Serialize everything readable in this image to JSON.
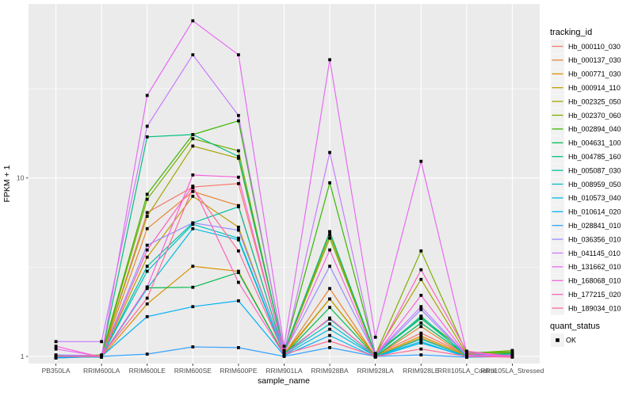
{
  "chart_data": {
    "type": "line",
    "xlabel": "sample_name",
    "ylabel": "FPKM + 1",
    "y_scale": "log10",
    "y_ticks": [
      "1",
      "10"
    ],
    "ylim": [
      0.9,
      92
    ],
    "grid": true,
    "legend_position": "right",
    "legend_series_title": "tracking_id",
    "legend_shape_title": "quant_status",
    "legend_shape_label": "OK",
    "marker": "black-square",
    "theme": {
      "panel_bg": "#EBEBEB",
      "grid": "#FFFFFF",
      "key_bg": "#F2F2F2",
      "marker": "#000000",
      "tick_text": "#4D4D4D",
      "axis_tick": "#333333"
    },
    "categories": [
      "PB350LA",
      "RRIM600LA",
      "RRIM600LE",
      "RRIM600SE",
      "RRIM600PE",
      "RRIM901LA",
      "RRIM928BA",
      "RRIM928LA",
      "RRIM928LE",
      "RRII105LA_Control",
      "RRII105LA_Stressed"
    ],
    "series": [
      {
        "name": "Hb_000110_030",
        "color": "#F8766D",
        "values": [
          1.0,
          1.0,
          6.4,
          8.9,
          9.3,
          1.05,
          5.0,
          1.02,
          1.35,
          1.02,
          1.0
        ]
      },
      {
        "name": "Hb_000137_030",
        "color": "#EA8331",
        "values": [
          0.98,
          1.0,
          5.2,
          8.4,
          7.0,
          1.03,
          2.4,
          1.0,
          1.47,
          1.0,
          1.01
        ]
      },
      {
        "name": "Hb_000771_030",
        "color": "#D89000",
        "values": [
          1.0,
          0.99,
          1.97,
          3.2,
          3.0,
          1.02,
          2.1,
          1.01,
          1.3,
          1.01,
          1.0
        ]
      },
      {
        "name": "Hb_000914_110",
        "color": "#C09B00",
        "values": [
          0.99,
          1.0,
          3.6,
          7.9,
          5.3,
          1.04,
          2.1,
          1.0,
          1.27,
          1.0,
          1.02
        ]
      },
      {
        "name": "Hb_002325_050",
        "color": "#A3A500",
        "values": [
          1.0,
          1.01,
          6.1,
          15.1,
          12.9,
          1.06,
          4.8,
          1.03,
          2.7,
          1.03,
          1.05
        ]
      },
      {
        "name": "Hb_002370_060",
        "color": "#7CAE00",
        "values": [
          1.01,
          1.0,
          7.6,
          16.6,
          14.2,
          1.05,
          4.6,
          1.02,
          3.9,
          1.04,
          1.08
        ]
      },
      {
        "name": "Hb_002894_040",
        "color": "#39B600",
        "values": [
          1.0,
          1.02,
          8.1,
          17.5,
          20.9,
          1.08,
          9.4,
          1.04,
          1.66,
          1.05,
          1.06
        ]
      },
      {
        "name": "Hb_004631_100",
        "color": "#00BB4E",
        "values": [
          0.99,
          1.0,
          2.42,
          2.44,
          2.95,
          1.02,
          1.88,
          1.0,
          1.54,
          1.01,
          1.03
        ]
      },
      {
        "name": "Hb_004785_160",
        "color": "#00BF7D",
        "values": [
          1.0,
          1.01,
          17.0,
          17.5,
          13.2,
          1.07,
          5.0,
          1.03,
          1.63,
          1.02,
          1.04
        ]
      },
      {
        "name": "Hb_005087_030",
        "color": "#00C1A3",
        "values": [
          1.0,
          1.0,
          3.2,
          5.6,
          6.9,
          1.04,
          1.62,
          1.01,
          1.68,
          1.0,
          1.02
        ]
      },
      {
        "name": "Hb_008959_050",
        "color": "#00BFC4",
        "values": [
          0.99,
          1.0,
          3.0,
          5.5,
          4.6,
          1.03,
          1.52,
          1.0,
          1.25,
          1.0,
          1.01
        ]
      },
      {
        "name": "Hb_010573_040",
        "color": "#00BAE0",
        "values": [
          1.0,
          0.99,
          2.4,
          5.2,
          4.5,
          1.02,
          1.42,
          1.0,
          1.21,
          0.99,
          1.0
        ]
      },
      {
        "name": "Hb_010614_020",
        "color": "#00B0F6",
        "values": [
          0.98,
          1.0,
          1.67,
          1.9,
          2.05,
          1.01,
          1.31,
          0.99,
          1.19,
          1.0,
          1.0
        ]
      },
      {
        "name": "Hb_028841_010",
        "color": "#35A2FF",
        "values": [
          1.0,
          1.0,
          1.03,
          1.13,
          1.12,
          1.0,
          1.12,
          1.0,
          1.02,
          0.99,
          1.0
        ]
      },
      {
        "name": "Hb_036356_010",
        "color": "#9590FF",
        "values": [
          1.02,
          1.01,
          4.2,
          5.6,
          5.1,
          1.05,
          3.2,
          1.02,
          1.83,
          1.01,
          1.02
        ]
      },
      {
        "name": "Hb_041145_010",
        "color": "#C77CFF",
        "values": [
          1.21,
          1.21,
          19.5,
          49.0,
          22.4,
          1.06,
          13.9,
          1.03,
          1.9,
          1.02,
          1.01
        ]
      },
      {
        "name": "Hb_131662_010",
        "color": "#E76BF3",
        "values": [
          1.1,
          1.0,
          29.0,
          76.0,
          49.0,
          1.14,
          46.0,
          1.28,
          12.4,
          1.05,
          1.0
        ]
      },
      {
        "name": "Hb_168068_010",
        "color": "#FA62DB",
        "values": [
          1.14,
          0.99,
          2.45,
          10.4,
          10.1,
          1.04,
          3.95,
          1.01,
          2.2,
          1.02,
          1.0
        ]
      },
      {
        "name": "Hb_177215_020",
        "color": "#FF62BC",
        "values": [
          1.0,
          1.0,
          3.95,
          9.0,
          2.6,
          1.02,
          1.64,
          1.0,
          3.06,
          1.07,
          1.0
        ]
      },
      {
        "name": "Hb_189034_010",
        "color": "#FF6A98",
        "values": [
          1.0,
          1.01,
          2.12,
          8.8,
          3.9,
          1.03,
          1.22,
          1.0,
          1.1,
          1.0,
          0.99
        ]
      }
    ]
  }
}
